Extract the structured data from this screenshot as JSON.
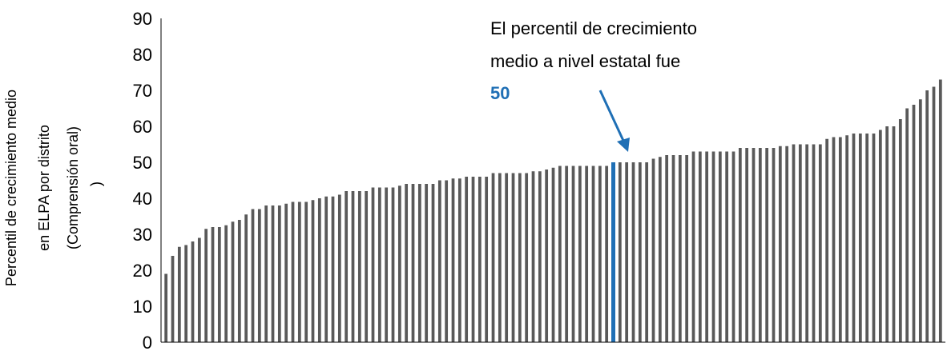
{
  "chart_data": {
    "type": "bar",
    "ylabel_lines": [
      "Percentil de crecimiento medio",
      "en ELPA por distrito",
      "(Comprensión oral)",
      ")"
    ],
    "ylim": [
      0,
      90
    ],
    "yticks": [
      "0",
      "10",
      "20",
      "30",
      "40",
      "50",
      "60",
      "70",
      "80",
      "90"
    ],
    "grid": false,
    "colors": {
      "bar": "#595959",
      "highlight": "#1F6FB5"
    },
    "highlight_value": 50,
    "values": [
      19,
      24,
      26.5,
      27,
      28,
      29,
      31.5,
      32,
      32,
      32.5,
      33.5,
      34,
      35.5,
      37,
      37,
      38,
      38,
      38,
      38.5,
      39,
      39,
      39,
      39.5,
      40,
      40.5,
      40.5,
      41,
      42,
      42,
      42,
      42,
      43,
      43,
      43,
      43,
      43.5,
      44,
      44,
      44,
      44,
      44,
      45,
      45,
      45.5,
      45.5,
      46,
      46,
      46,
      46,
      47,
      47,
      47,
      47,
      47,
      47,
      47.5,
      47.5,
      48,
      48.5,
      49,
      49,
      49,
      49,
      49,
      49,
      49,
      49,
      50,
      50,
      50,
      50,
      50,
      50,
      51,
      51.5,
      52,
      52,
      52,
      52,
      53,
      53,
      53,
      53,
      53,
      53,
      53,
      54,
      54,
      54,
      54,
      54,
      54,
      54.5,
      54.5,
      55,
      55,
      55,
      55,
      55,
      56.5,
      57,
      57,
      57.5,
      58,
      58,
      58,
      58,
      59,
      60,
      60,
      62,
      65,
      66,
      67.5,
      70,
      71,
      73
    ],
    "annotation": {
      "lines": [
        "El percentil de crecimiento",
        "medio a nivel estatal fue"
      ],
      "value": "50"
    }
  }
}
